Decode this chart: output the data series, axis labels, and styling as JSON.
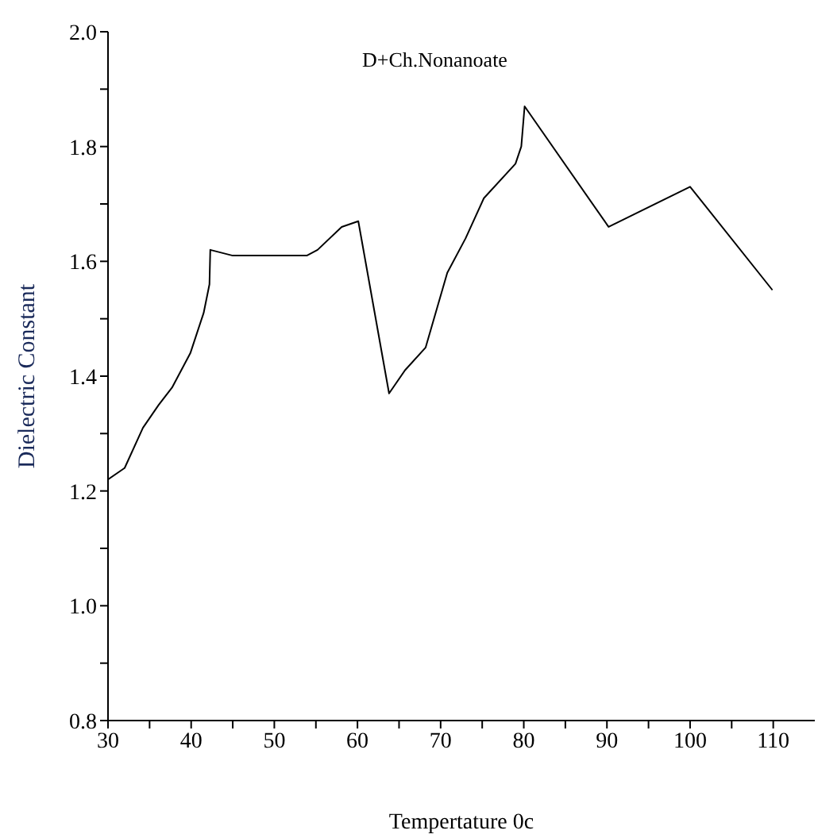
{
  "chart_data": {
    "type": "line",
    "title": "D+Ch.Nonanoate",
    "xlabel": "Tempertature 0c",
    "ylabel": "Dielectric Constant",
    "x": [
      30,
      32,
      34.2,
      36.1,
      37.7,
      39.9,
      41.5,
      42.2,
      42.3,
      45,
      53.9,
      55.2,
      58.1,
      60.1,
      63.8,
      65.7,
      68.2,
      70.8,
      73,
      75.2,
      79,
      79.7,
      80.1,
      90.2,
      100,
      109.9
    ],
    "series": [
      {
        "color": "#000000",
        "values": [
          1.22,
          1.24,
          1.31,
          1.35,
          1.38,
          1.44,
          1.51,
          1.56,
          1.62,
          1.61,
          1.61,
          1.62,
          1.66,
          1.67,
          1.37,
          1.41,
          1.45,
          1.58,
          1.64,
          1.71,
          1.77,
          1.8,
          1.87,
          1.66,
          1.73,
          1.55
        ]
      }
    ],
    "xlim": [
      30,
      115
    ],
    "xticks": [
      30,
      {
        "value": 35,
        "label": null
      },
      40,
      {
        "value": 45,
        "label": null
      },
      50,
      {
        "value": 55,
        "label": null
      },
      60,
      {
        "value": 65,
        "label": null
      },
      70,
      {
        "value": 75,
        "label": null
      },
      80,
      {
        "value": 85,
        "label": null
      },
      90,
      {
        "value": 95,
        "label": null
      },
      100,
      {
        "value": 105,
        "label": null
      },
      110
    ],
    "ylim": [
      0.8,
      2.0
    ],
    "yticks": [
      {
        "value": 0.8,
        "label": "0.8"
      },
      {
        "value": 0.9,
        "label": null
      },
      {
        "value": 1.0,
        "label": "1.0"
      },
      {
        "value": 1.1,
        "label": null
      },
      1.2,
      {
        "value": 1.3,
        "label": null
      },
      1.4,
      {
        "value": 1.5,
        "label": null
      },
      1.6,
      {
        "value": 1.7,
        "label": null
      },
      1.8,
      {
        "value": 1.9,
        "label": null
      },
      {
        "value": 2.0,
        "label": "2.0"
      }
    ],
    "grid": false,
    "legend": false,
    "marker": "none",
    "line_style": "solid"
  }
}
